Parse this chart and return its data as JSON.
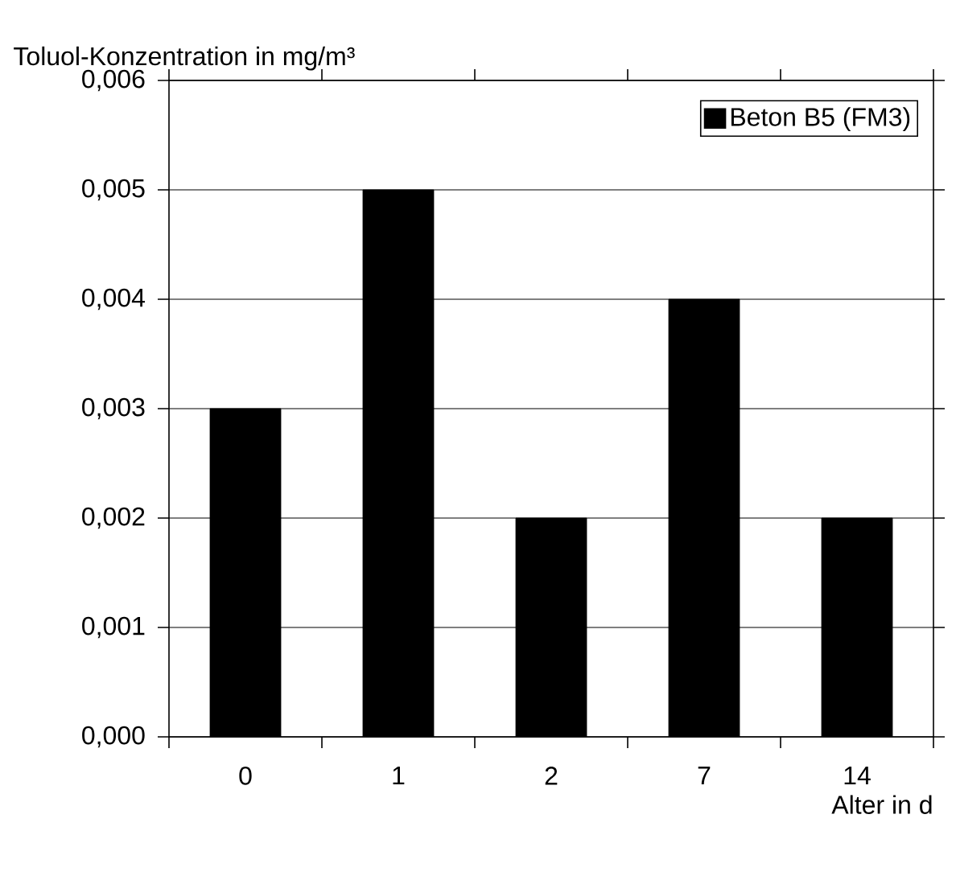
{
  "chart_data": {
    "type": "bar",
    "ylabel": "Toluol-Konzentration in mg/m³",
    "xlabel": "Alter in d",
    "categories": [
      "0",
      "1",
      "2",
      "7",
      "14"
    ],
    "series": [
      {
        "name": "Beton B5 (FM3)",
        "color": "#000000",
        "values": [
          0.003,
          0.005,
          0.002,
          0.004,
          0.002
        ]
      }
    ],
    "ylim": [
      0,
      0.006
    ],
    "yticks": [
      {
        "value": 0,
        "label": "0,000"
      },
      {
        "value": 0.001,
        "label": "0,001"
      },
      {
        "value": 0.002,
        "label": "0,002"
      },
      {
        "value": 0.003,
        "label": "0,003"
      },
      {
        "value": 0.004,
        "label": "0,004"
      },
      {
        "value": 0.005,
        "label": "0,005"
      },
      {
        "value": 0.006,
        "label": "0,006"
      }
    ],
    "grid": "y",
    "legend": "top right"
  }
}
